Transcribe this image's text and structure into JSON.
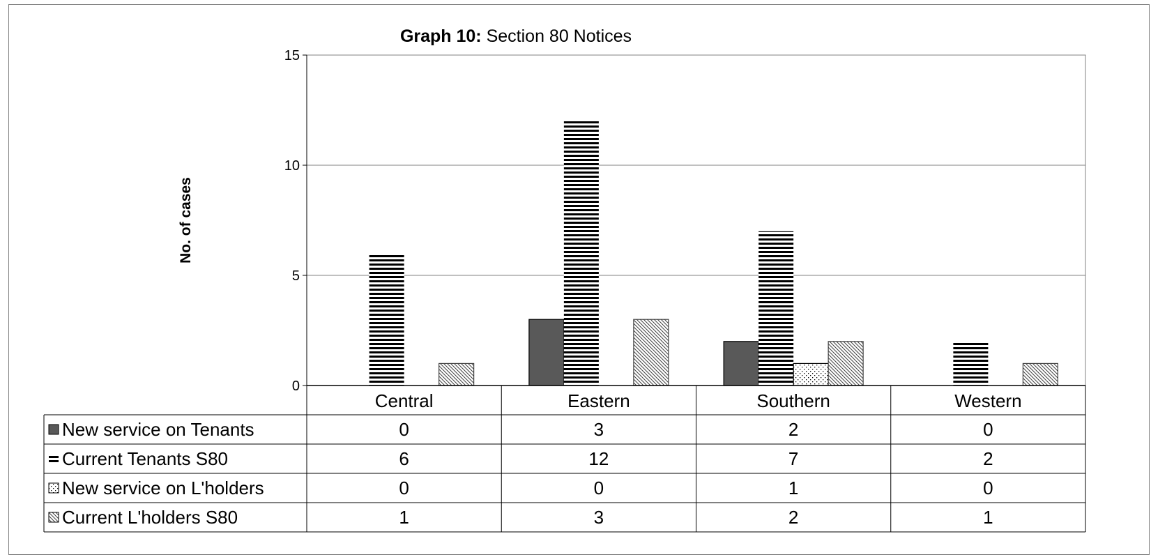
{
  "chart_data": {
    "type": "bar",
    "title_bold": "Graph 10:",
    "title_rest": " Section 80 Notices",
    "xlabel": "",
    "ylabel": "No. of cases",
    "ylim": [
      0,
      15
    ],
    "yticks": [
      0,
      5,
      10,
      15
    ],
    "grid": true,
    "legend": "data-table",
    "categories": [
      "Central",
      "Eastern",
      "Southern",
      "Western"
    ],
    "series": [
      {
        "name": "New service on Tenants",
        "values": [
          0,
          3,
          2,
          0
        ],
        "color": "#595959",
        "pattern": "solid-dark"
      },
      {
        "name": "Current Tenants S80",
        "values": [
          6,
          12,
          7,
          2
        ],
        "color": "#000000",
        "pattern": "horizontal-stripes"
      },
      {
        "name": "New service on L'holders",
        "values": [
          0,
          0,
          1,
          0
        ],
        "color": "#000000",
        "pattern": "dots"
      },
      {
        "name": "Current L'holders S80",
        "values": [
          1,
          3,
          2,
          1
        ],
        "color": "#808080",
        "pattern": "diagonal-hatch"
      }
    ]
  }
}
